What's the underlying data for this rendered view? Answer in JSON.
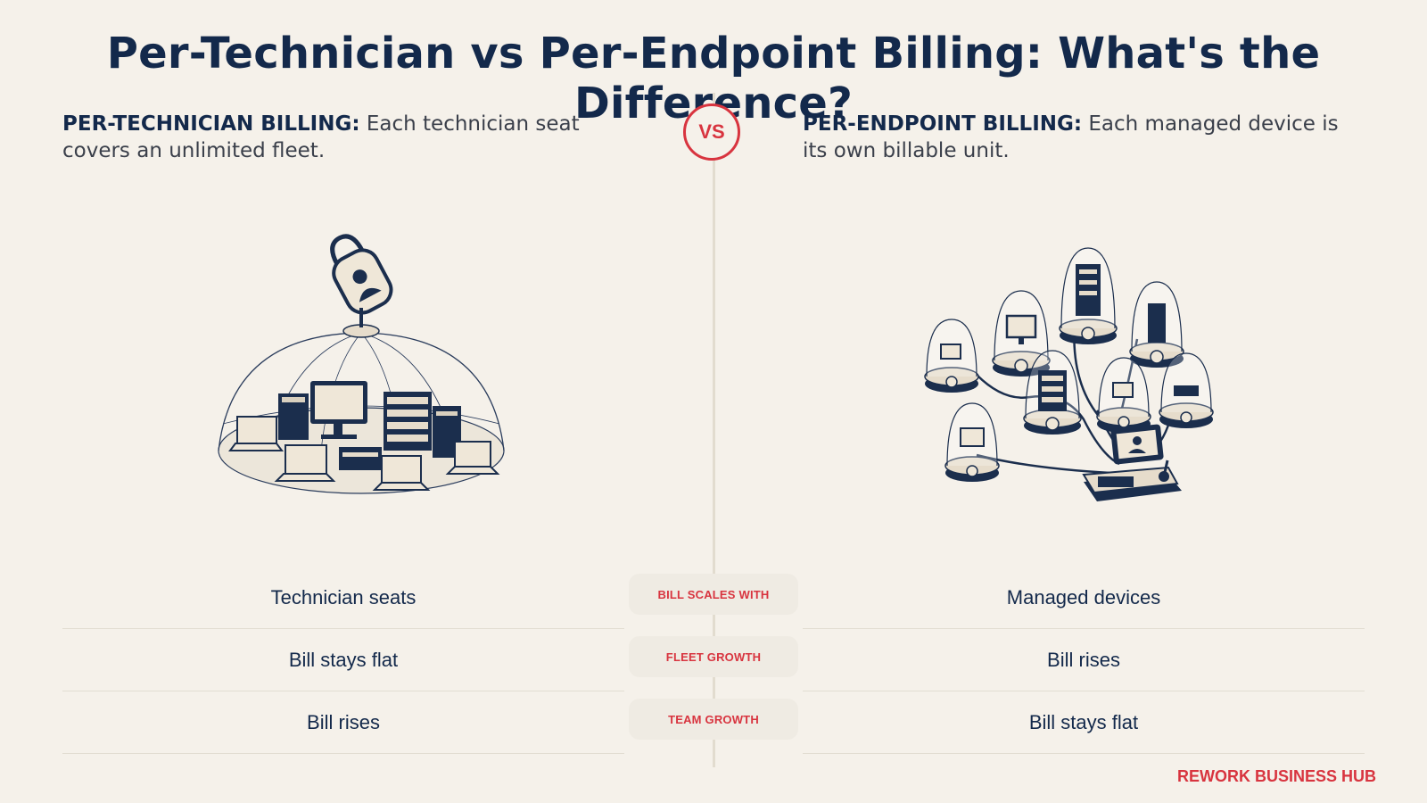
{
  "title": "Per-Technician vs Per-Endpoint Billing: What's the Difference?",
  "vs_label": "VS",
  "left": {
    "lead": "PER-TECHNICIAN BILLING:",
    "text": " Each technician seat covers an unlimited fleet.",
    "illustration": "padlock-dome-over-devices"
  },
  "right": {
    "lead": "PER-ENDPOINT BILLING:",
    "text": " Each managed device is its own billable unit.",
    "illustration": "metered-device-domes-network"
  },
  "comparison": {
    "labels": [
      "BILL SCALES WITH",
      "FLEET GROWTH",
      "TEAM GROWTH"
    ],
    "left": [
      "Technician seats",
      "Bill stays flat",
      "Bill rises"
    ],
    "right": [
      "Managed devices",
      "Bill rises",
      "Bill stays flat"
    ]
  },
  "brand": "REWORK BUSINESS HUB",
  "colors": {
    "background": "#f5f1ea",
    "navy": "#13294b",
    "accent_red": "#d8343f"
  }
}
